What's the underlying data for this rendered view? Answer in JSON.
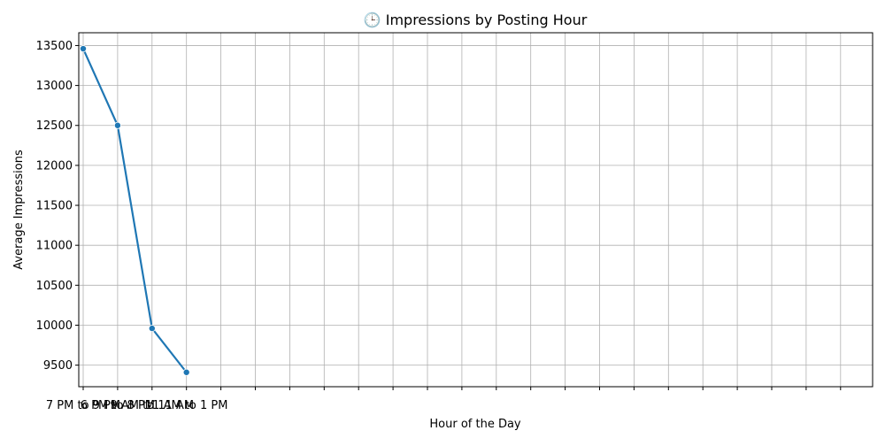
{
  "chart_data": {
    "type": "line",
    "title": "🕒 Impressions by Posting Hour",
    "xlabel": "Hour of the Day",
    "ylabel": "Average Impressions",
    "categories": [
      "7 PM to 9 PM",
      "6 PM to 8 PM",
      "9 AM to 11 AM",
      "11 AM to 1 PM"
    ],
    "series": [
      {
        "values": [
          13460,
          12500,
          9960,
          9410
        ],
        "color": "#1f77b4"
      }
    ],
    "ylim": [
      9230,
      13660
    ],
    "yticks": [
      9500,
      10000,
      10500,
      11000,
      11500,
      12000,
      12500,
      13000,
      13500
    ],
    "x_tick_count": 24,
    "grid": true
  }
}
